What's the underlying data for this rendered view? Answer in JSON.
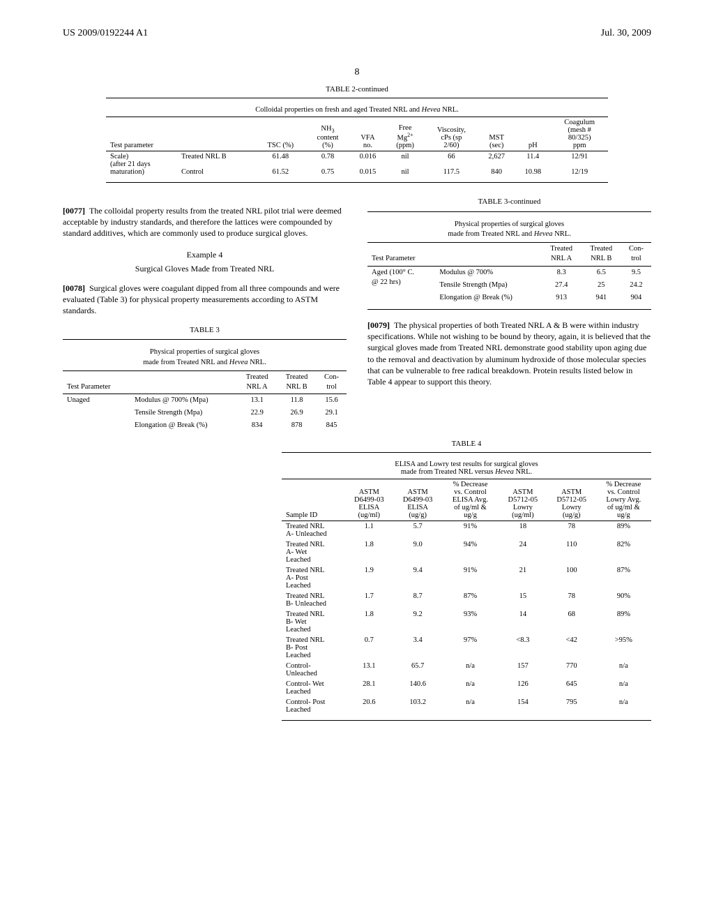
{
  "header": {
    "pub_no": "US 2009/0192244 A1",
    "date": "Jul. 30, 2009",
    "page": "8"
  },
  "table2": {
    "caption": "TABLE 2-continued",
    "subtitle_pre": "Colloidal properties on fresh and aged Treated NRL and ",
    "subtitle_em": "Hevea",
    "subtitle_post": " NRL.",
    "columns": {
      "c0": "Test parameter",
      "c1": "",
      "c2": "TSC (%)",
      "c3_l1": "NH",
      "c3_sub": "3",
      "c3_l2": "content",
      "c3_l3": "(%)",
      "c4_l1": "VFA",
      "c4_l2": "no.",
      "c5_l1": "Free",
      "c5_l2": "Mg",
      "c5_sup": "2+",
      "c5_l3": "(ppm)",
      "c6_l1": "Viscosity,",
      "c6_l2": "cPs (sp",
      "c6_l3": "2/60)",
      "c7_l1": "MST",
      "c7_l2": "(sec)",
      "c8": "pH",
      "c9_l1": "Coagulum",
      "c9_l2": "(mesh #",
      "c9_l3": "80/325)",
      "c9_l4": "ppm"
    },
    "rows": [
      {
        "a": "Scale)",
        "a2": "(after 21 days",
        "a3": "maturation)",
        "b": "Treated NRL B",
        "c": "61.48",
        "d": "0.78",
        "e": "0.016",
        "f": "nil",
        "g": "66",
        "h": "2,627",
        "i": "11.4",
        "j": "12/91"
      },
      {
        "b": "Control",
        "c": "61.52",
        "d": "0.75",
        "e": "0.015",
        "f": "nil",
        "g": "117.5",
        "h": "840",
        "i": "10.98",
        "j": "12/19"
      }
    ]
  },
  "para77": {
    "num": "[0077]",
    "text": "The colloidal property results from the treated NRL pilot trial were deemed acceptable by industry standards, and therefore the lattices were compounded by standard additives, which are commonly used to produce surgical gloves."
  },
  "example4": {
    "title": "Example 4",
    "sub": "Surgical Gloves Made from Treated NRL"
  },
  "para78": {
    "num": "[0078]",
    "text": "Surgical gloves were coagulant dipped from all three compounds and were evaluated (Table 3) for physical property measurements according to ASTM standards."
  },
  "table3": {
    "caption": "TABLE 3",
    "sub_l1": "Physical properties of surgical gloves",
    "sub_l2_pre": "made from Treated NRL and ",
    "sub_l2_em": "Hevea",
    "sub_l2_post": " NRL.",
    "cols": {
      "c0": "Test Parameter",
      "c1": "",
      "c2a": "Treated",
      "c2b": "NRL A",
      "c3a": "Treated",
      "c3b": "NRL B",
      "c4a": "Con-",
      "c4b": "trol"
    },
    "group": "Unaged",
    "r1": {
      "label": "Modulus @ 700% (Mpa)",
      "a": "13.1",
      "b": "11.8",
      "c": "15.6"
    },
    "r2": {
      "label": "Tensile Strength (Mpa)",
      "a": "22.9",
      "b": "26.9",
      "c": "29.1"
    },
    "r3": {
      "label": "Elongation @ Break (%)",
      "a": "834",
      "b": "878",
      "c": "845"
    }
  },
  "table3c": {
    "caption": "TABLE 3-continued",
    "group_l1": "Aged (100° C.",
    "group_l2": "@ 22 hrs)",
    "r1": {
      "label": "Modulus @ 700%",
      "a": "8.3",
      "b": "6.5",
      "c": "9.5"
    },
    "r2": {
      "label": "Tensile Strength (Mpa)",
      "a": "27.4",
      "b": "25",
      "c": "24.2"
    },
    "r3": {
      "label": "Elongation @ Break (%)",
      "a": "913",
      "b": "941",
      "c": "904"
    }
  },
  "para79": {
    "num": "[0079]",
    "text": "The physical properties of both Treated NRL A & B were within industry specifications. While not wishing to be bound by theory, again, it is believed that the surgical gloves made from Treated NRL demonstrate good stability upon aging due to the removal and deactivation by aluminum hydroxide of those molecular species that can be vulnerable to free radical breakdown. Protein results listed below in Table 4 appear to support this theory."
  },
  "table4": {
    "caption": "TABLE 4",
    "sub_l1": "ELISA and Lowry test results for surgical gloves",
    "sub_l2_pre": "made from Treated NRL versus ",
    "sub_l2_em": "Hevea",
    "sub_l2_post": " NRL.",
    "cols": {
      "c0": "Sample ID",
      "c1_l1": "ASTM",
      "c1_l2": "D6499-03",
      "c1_l3": "ELISA",
      "c1_l4": "(ug/ml)",
      "c2_l1": "ASTM",
      "c2_l2": "D6499-03",
      "c2_l3": "ELISA",
      "c2_l4": "(ug/g)",
      "c3_l1": "% Decrease",
      "c3_l2": "vs. Control",
      "c3_l3": "ELISA Avg.",
      "c3_l4": "of ug/ml &",
      "c3_l5": "ug/g",
      "c4_l1": "ASTM",
      "c4_l2": "D5712-05",
      "c4_l3": "Lowry",
      "c4_l4": "(ug/ml)",
      "c5_l1": "ASTM",
      "c5_l2": "D5712-05",
      "c5_l3": "Lowry",
      "c5_l4": "(ug/g)",
      "c6_l1": "% Decrease",
      "c6_l2": "vs. Control",
      "c6_l3": "Lowry Avg.",
      "c6_l4": "of ug/ml &",
      "c6_l5": "ug/g"
    },
    "rows": [
      {
        "id_l1": "Treated NRL",
        "id_l2": "A- Unleached",
        "a": "1.1",
        "b": "5.7",
        "c": "91%",
        "d": "18",
        "e": "78",
        "f": "89%"
      },
      {
        "id_l1": "Treated NRL",
        "id_l2": "A- Wet",
        "id_l3": "Leached",
        "a": "1.8",
        "b": "9.0",
        "c": "94%",
        "d": "24",
        "e": "110",
        "f": "82%"
      },
      {
        "id_l1": "Treated NRL",
        "id_l2": "A- Post",
        "id_l3": "Leached",
        "a": "1.9",
        "b": "9.4",
        "c": "91%",
        "d": "21",
        "e": "100",
        "f": "87%"
      },
      {
        "id_l1": "Treated NRL",
        "id_l2": "B- Unleached",
        "a": "1.7",
        "b": "8.7",
        "c": "87%",
        "d": "15",
        "e": "78",
        "f": "90%"
      },
      {
        "id_l1": "Treated NRL",
        "id_l2": "B- Wet",
        "id_l3": "Leached",
        "a": "1.8",
        "b": "9.2",
        "c": "93%",
        "d": "14",
        "e": "68",
        "f": "89%"
      },
      {
        "id_l1": "Treated NRL",
        "id_l2": "B- Post",
        "id_l3": "Leached",
        "a": "0.7",
        "b": "3.4",
        "c": "97%",
        "d": "<8.3",
        "e": "<42",
        "f": ">95%"
      },
      {
        "id_l1": "Control-",
        "id_l2": "Unleached",
        "a": "13.1",
        "b": "65.7",
        "c": "n/a",
        "d": "157",
        "e": "770",
        "f": "n/a"
      },
      {
        "id_l1": "Control- Wet",
        "id_l2": "Leached",
        "a": "28.1",
        "b": "140.6",
        "c": "n/a",
        "d": "126",
        "e": "645",
        "f": "n/a"
      },
      {
        "id_l1": "Control- Post",
        "id_l2": "Leached",
        "a": "20.6",
        "b": "103.2",
        "c": "n/a",
        "d": "154",
        "e": "795",
        "f": "n/a"
      }
    ]
  }
}
